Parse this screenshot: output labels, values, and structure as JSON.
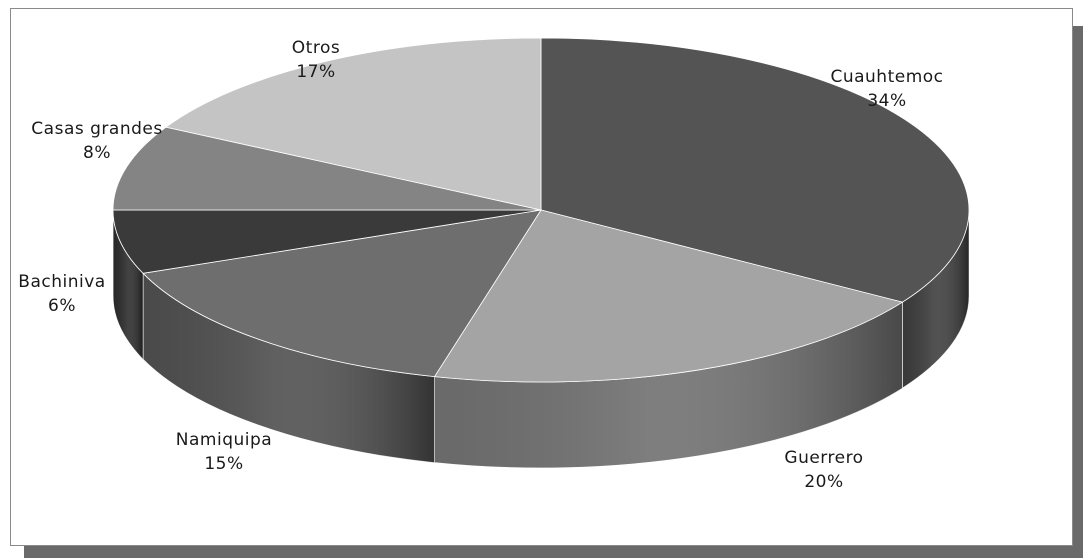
{
  "chart_data": {
    "type": "pie",
    "title": "",
    "three_d": true,
    "slices": [
      {
        "label": "Cuauhtemoc",
        "pct_label": "34%",
        "value": 34,
        "color": "#545454",
        "side": "#3c3c3c"
      },
      {
        "label": "Guerrero",
        "pct_label": "20%",
        "value": 20,
        "color": "#a4a4a4",
        "side": "#6f6f6f"
      },
      {
        "label": "Namiquipa",
        "pct_label": "15%",
        "value": 15,
        "color": "#6e6e6e",
        "side": "#4e4e4e"
      },
      {
        "label": "Bachiniva",
        "pct_label": "6%",
        "value": 6,
        "color": "#3a3a3a",
        "side": "#2a2a2a"
      },
      {
        "label": "Casas grandes",
        "pct_label": "8%",
        "value": 8,
        "color": "#848484",
        "side": "#5e5e5e"
      },
      {
        "label": "Otros",
        "pct_label": "17%",
        "value": 17,
        "color": "#c4c4c4",
        "side": "#8e8e8e"
      }
    ]
  }
}
